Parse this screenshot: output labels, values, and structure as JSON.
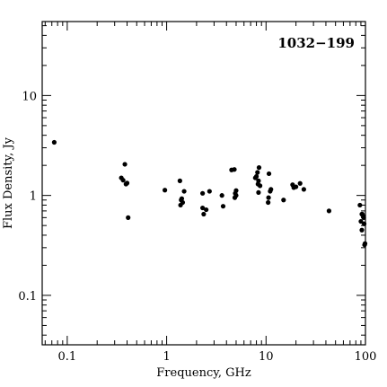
{
  "chart_data": {
    "type": "scatter",
    "title": "1032−199",
    "xlabel": "Frequency, GHz",
    "ylabel": "Flux Density, Jy",
    "xscale": "log",
    "yscale": "log",
    "xlim": [
      0.056,
      100
    ],
    "ylim": [
      0.032,
      55
    ],
    "grid": false,
    "x_tick_labels": [
      "0.1",
      "1",
      "10",
      "100"
    ],
    "x_tick_values": [
      0.1,
      1,
      10,
      100
    ],
    "y_tick_labels": [
      "0.1",
      "1",
      "10"
    ],
    "y_tick_values": [
      0.1,
      1,
      10
    ],
    "series": [
      {
        "x": [
          0.074,
          0.35,
          0.365,
          0.38,
          0.39,
          0.4,
          0.41,
          0.96,
          1.36,
          1.38,
          1.4,
          1.42,
          1.45,
          1.5,
          2.3,
          2.3,
          2.36,
          2.5,
          2.7,
          3.6,
          3.7,
          4.5,
          4.8,
          4.85,
          4.9,
          5.0,
          5.0,
          7.8,
          8.0,
          8.2,
          8.3,
          8.4,
          8.4,
          8.5,
          8.7,
          10.5,
          10.6,
          10.7,
          11.0,
          11.2,
          15.0,
          18.5,
          19.0,
          20.0,
          22.0,
          24.0,
          43.0,
          88.0,
          90.0,
          92.0,
          92.0,
          93.0,
          95.0,
          96.0,
          97.0,
          98.0,
          99.0
        ],
        "y": [
          3.4,
          1.5,
          1.42,
          2.05,
          1.3,
          1.33,
          0.6,
          1.13,
          1.4,
          0.8,
          0.9,
          0.93,
          0.85,
          1.1,
          1.05,
          0.75,
          0.65,
          0.72,
          1.1,
          1.0,
          0.78,
          1.8,
          1.82,
          0.95,
          1.05,
          1.0,
          1.12,
          1.5,
          1.55,
          1.7,
          1.3,
          1.4,
          1.07,
          1.9,
          1.25,
          0.85,
          0.95,
          1.65,
          1.1,
          1.15,
          0.9,
          1.28,
          1.2,
          1.22,
          1.32,
          1.15,
          0.7,
          0.8,
          0.55,
          0.65,
          0.45,
          0.65,
          0.62,
          0.6,
          0.52,
          0.32,
          0.33
        ]
      }
    ]
  }
}
